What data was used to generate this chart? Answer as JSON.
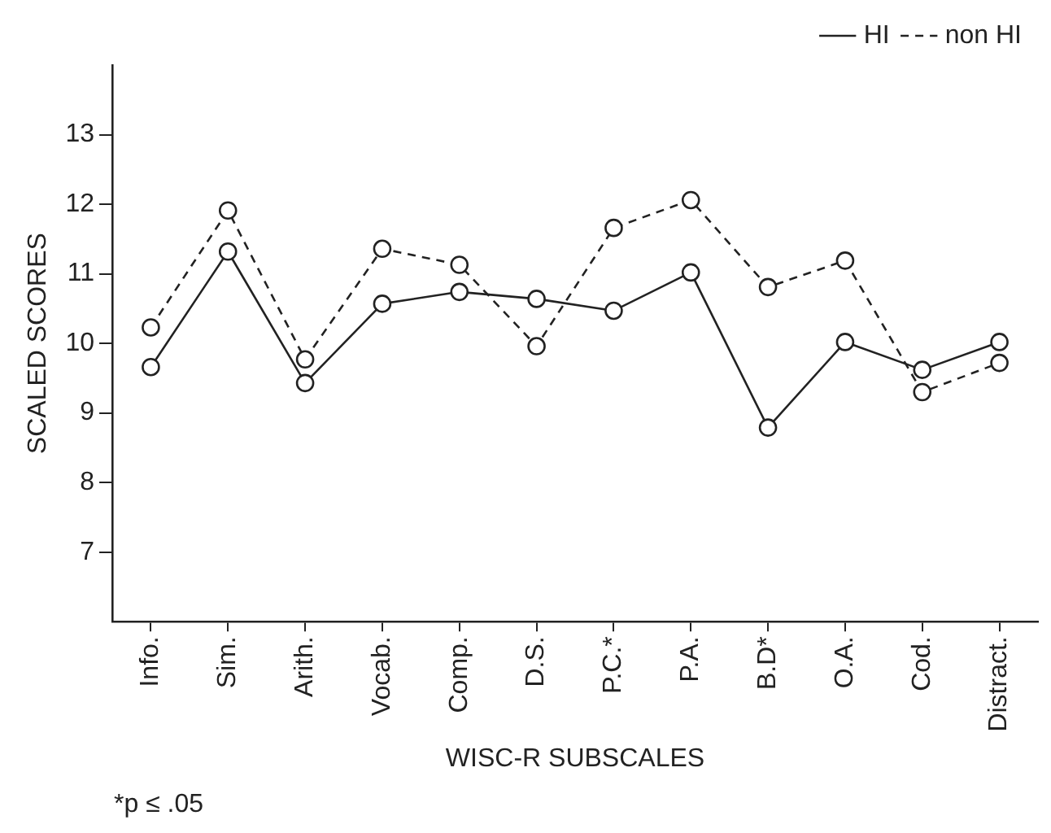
{
  "chart_data": {
    "type": "line",
    "xlabel": "WISC-R SUBSCALES",
    "ylabel": "SCALED SCORES",
    "annotations": [
      "*p ≤ .05"
    ],
    "categories": [
      "Info.",
      "Sim.",
      "Arith.",
      "Vocab.",
      "Comp.",
      "D.S.",
      "P.C.*",
      "P.A.",
      "B.D*",
      "O.A.",
      "Cod.",
      "Distract."
    ],
    "series": [
      {
        "name": "HI",
        "color": "#222222",
        "line_style": "solid",
        "values": [
          9.66,
          11.32,
          9.43,
          10.57,
          10.74,
          10.64,
          10.47,
          11.02,
          8.79,
          10.02,
          9.62,
          10.02
        ]
      },
      {
        "name": "non HI",
        "color": "#222222",
        "line_style": "dashed",
        "values": [
          10.23,
          11.91,
          9.77,
          11.36,
          11.13,
          9.96,
          11.66,
          12.06,
          10.81,
          11.19,
          9.3,
          9.72
        ]
      }
    ],
    "ylim": [
      6,
      14
    ],
    "yticks": [
      7,
      8,
      9,
      10,
      11,
      12,
      13
    ],
    "grid": false,
    "legend": "top right",
    "marker": "circle"
  }
}
